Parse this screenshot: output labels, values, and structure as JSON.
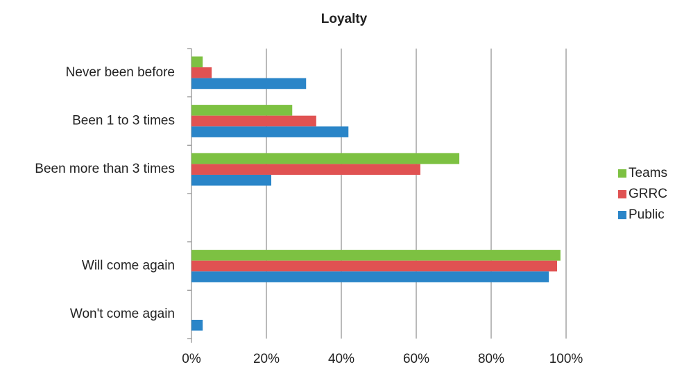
{
  "chart_data": {
    "type": "hbar",
    "title": "Loyalty",
    "categories": [
      "Never been before",
      "Been 1 to 3 times",
      "Been more than 3 times",
      null,
      "Will come again",
      "Won't come again"
    ],
    "series": [
      {
        "name": "Teams",
        "color": "#7dc142",
        "values": [
          3.0,
          26.9,
          71.5,
          null,
          98.5,
          0
        ]
      },
      {
        "name": "GRRC",
        "color": "#e05252",
        "values": [
          5.4,
          33.3,
          61.1,
          null,
          97.6,
          0
        ]
      },
      {
        "name": "Public",
        "color": "#2a85c8",
        "values": [
          30.6,
          41.9,
          21.3,
          null,
          95.4,
          3.0
        ]
      }
    ],
    "xlim": [
      0,
      100
    ],
    "xticks": [
      {
        "value": 0,
        "label": "0%"
      },
      {
        "value": 20,
        "label": "20%"
      },
      {
        "value": 40,
        "label": "40%"
      },
      {
        "value": 60,
        "label": "60%"
      },
      {
        "value": 80,
        "label": "80%"
      },
      {
        "value": 100,
        "label": "100%"
      }
    ],
    "grid": true,
    "legend": "right"
  }
}
